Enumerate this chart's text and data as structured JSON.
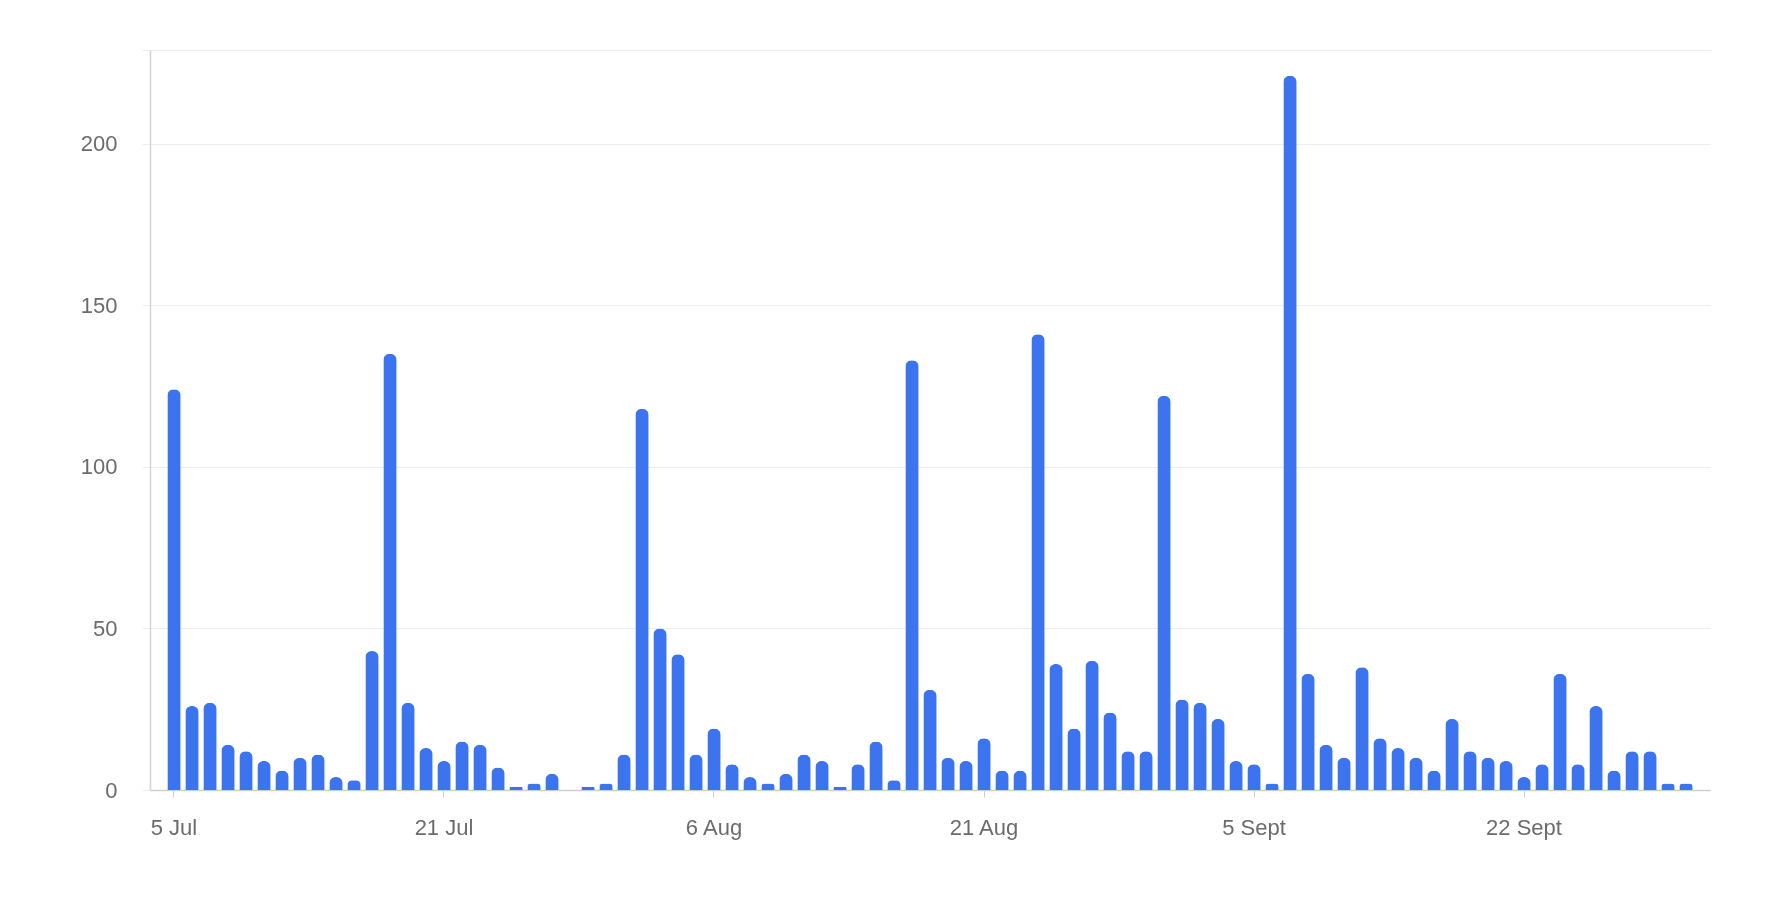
{
  "chart_data": {
    "type": "bar",
    "categories": [
      "5 Jul",
      null,
      null,
      null,
      null,
      null,
      null,
      null,
      null,
      null,
      null,
      null,
      null,
      null,
      null,
      "21 Jul",
      null,
      null,
      null,
      null,
      null,
      null,
      null,
      null,
      null,
      null,
      null,
      null,
      null,
      null,
      "6 Aug",
      null,
      null,
      null,
      null,
      null,
      null,
      null,
      null,
      null,
      null,
      null,
      null,
      null,
      null,
      "21 Aug",
      null,
      null,
      null,
      null,
      null,
      null,
      null,
      null,
      null,
      null,
      null,
      null,
      null,
      null,
      "5 Sept",
      null,
      null,
      null,
      null,
      null,
      null,
      null,
      null,
      null,
      null,
      null,
      null,
      null,
      null,
      "22 Sept",
      null,
      null,
      null,
      null,
      null,
      null,
      null,
      null,
      null
    ],
    "values": [
      124,
      26,
      27,
      14,
      12,
      9,
      6,
      10,
      11,
      4,
      3,
      43,
      135,
      27,
      13,
      9,
      15,
      14,
      7,
      1,
      2,
      5,
      0,
      1,
      2,
      11,
      118,
      50,
      42,
      11,
      19,
      8,
      4,
      2,
      5,
      11,
      9,
      1,
      8,
      15,
      3,
      133,
      31,
      10,
      9,
      16,
      6,
      6,
      141,
      39,
      19,
      40,
      24,
      12,
      12,
      122,
      28,
      27,
      22,
      9,
      8,
      2,
      221,
      36,
      14,
      10,
      38,
      16,
      13,
      10,
      6,
      22,
      12,
      10,
      9,
      4,
      8,
      36,
      8,
      26,
      6,
      12,
      12,
      2,
      2
    ],
    "color": "#3b74ee",
    "ylim": [
      0,
      229
    ],
    "yticks": [
      0,
      50,
      100,
      150,
      200,
      {
        "value": 229,
        "label": null
      }
    ],
    "grid": "y"
  }
}
